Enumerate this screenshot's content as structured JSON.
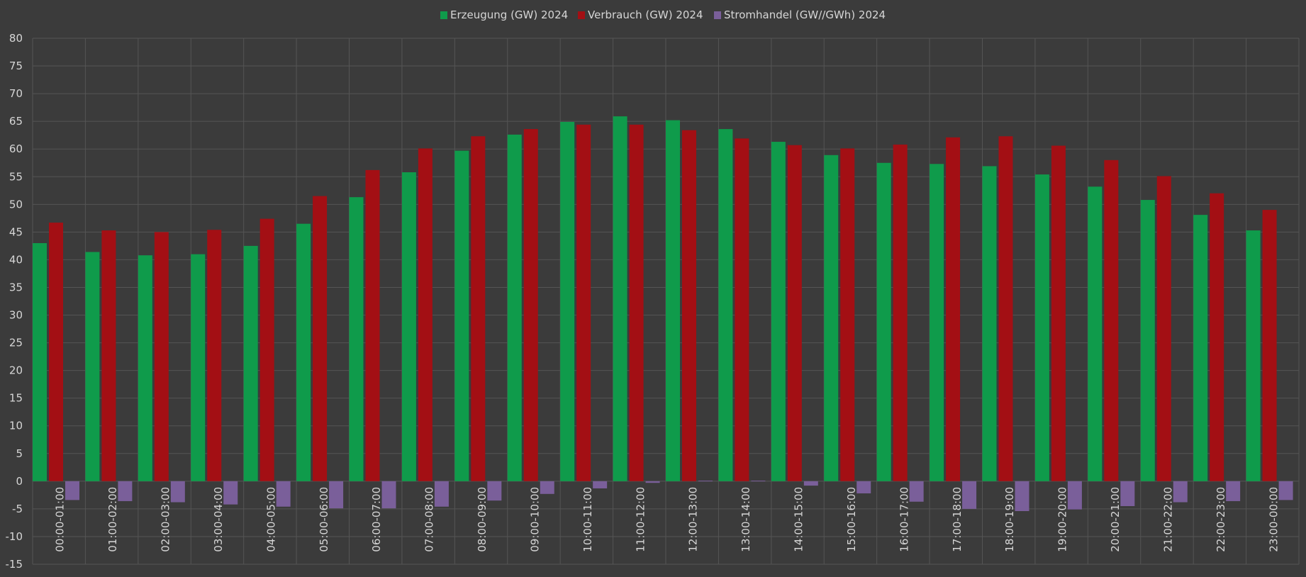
{
  "colors": {
    "background": "#3b3b3b",
    "grid": "#555555",
    "erzeugung": "#0f9b4b",
    "verbrauch": "#a30f14",
    "stromhandel": "#7a5f9a"
  },
  "chart_data": {
    "type": "bar",
    "title": "",
    "xlabel": "",
    "ylabel": "",
    "legend_position": "top-center",
    "grid": true,
    "ylim": [
      -15,
      80
    ],
    "ytick_step": 5,
    "categories": [
      "00:00-01:00",
      "01:00-02:00",
      "02:00-03:00",
      "03:00-04:00",
      "04:00-05:00",
      "05:00-06:00",
      "06:00-07:00",
      "07:00-08:00",
      "08:00-09:00",
      "09:00-10:00",
      "10:00-11:00",
      "11:00-12:00",
      "12:00-13:00",
      "13:00-14:00",
      "14:00-15:00",
      "15:00-16:00",
      "16:00-17:00",
      "17:00-18:00",
      "18:00-19:00",
      "19:00-20:00",
      "20:00-21:00",
      "21:00-22:00",
      "22:00-23:00",
      "23:00-00:00"
    ],
    "series": [
      {
        "name": "Erzeugung (GW) 2024",
        "color_key": "erzeugung",
        "values": [
          43.0,
          41.4,
          40.8,
          41.0,
          42.5,
          46.5,
          51.3,
          55.8,
          59.7,
          62.6,
          64.9,
          65.9,
          65.2,
          63.6,
          61.3,
          58.9,
          57.5,
          57.3,
          56.9,
          55.4,
          53.2,
          50.8,
          48.1,
          45.3
        ]
      },
      {
        "name": "Verbrauch (GW) 2024",
        "color_key": "verbrauch",
        "values": [
          46.7,
          45.3,
          45.0,
          45.4,
          47.4,
          51.5,
          56.2,
          60.1,
          62.3,
          63.6,
          64.4,
          64.4,
          63.4,
          61.9,
          60.7,
          60.1,
          60.8,
          62.1,
          62.3,
          60.6,
          58.0,
          55.1,
          52.0,
          49.0
        ]
      },
      {
        "name": "Stromhandel (GW//GWh) 2024",
        "color_key": "stromhandel",
        "values": [
          -3.4,
          -3.6,
          -3.8,
          -4.2,
          -4.6,
          -4.9,
          -4.9,
          -4.6,
          -3.5,
          -2.3,
          -1.3,
          -0.3,
          0.1,
          0.1,
          -0.8,
          -2.2,
          -3.7,
          -5.0,
          -5.4,
          -5.1,
          -4.5,
          -3.8,
          -3.6,
          -3.4
        ]
      }
    ]
  }
}
